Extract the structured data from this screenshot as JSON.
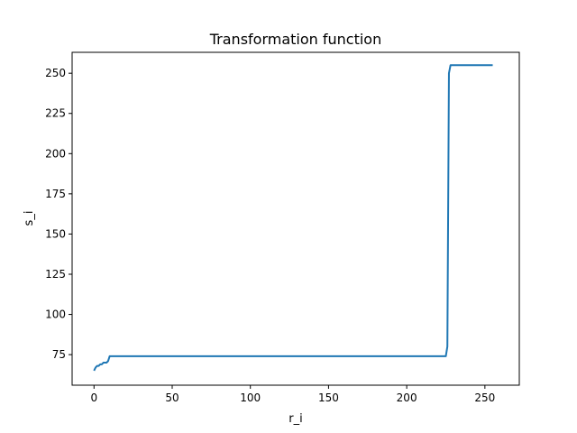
{
  "chart_data": {
    "type": "line",
    "title": "Transformation function",
    "xlabel": "r_i",
    "ylabel": "s_i",
    "xlim": [
      -14,
      272
    ],
    "ylim": [
      56,
      263
    ],
    "xticks": [
      0,
      50,
      100,
      150,
      200,
      250
    ],
    "yticks": [
      75,
      100,
      125,
      150,
      175,
      200,
      225,
      250
    ],
    "grid": false,
    "series": [
      {
        "color": "#1f77b4",
        "x": [
          0,
          1,
          2,
          3,
          4,
          5,
          6,
          7,
          8,
          9,
          10,
          11,
          225,
          226,
          227,
          228,
          229,
          255
        ],
        "y": [
          65,
          67,
          68,
          68,
          69,
          69,
          70,
          70,
          70,
          71,
          74,
          74,
          74,
          80,
          250,
          255,
          255,
          255
        ]
      }
    ]
  }
}
